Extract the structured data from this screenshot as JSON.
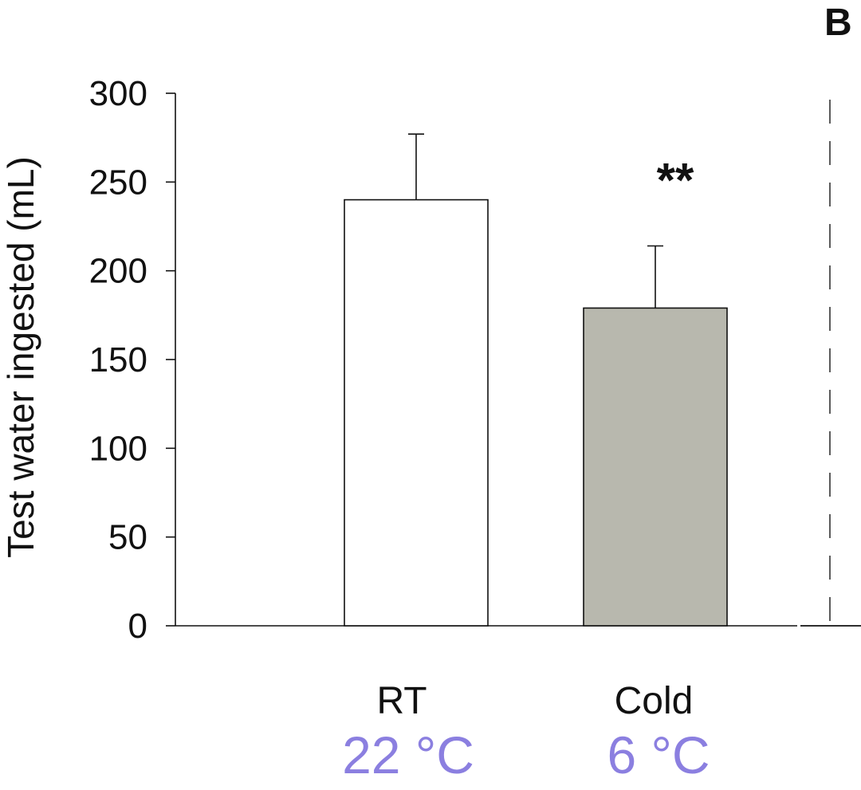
{
  "panel_letter": "B",
  "chart_data": {
    "type": "bar",
    "title": "",
    "xlabel": "",
    "ylabel": "Test water ingested (mL)",
    "ylim": [
      0,
      300
    ],
    "yticks": [
      0,
      50,
      100,
      150,
      200,
      250,
      300
    ],
    "categories": [
      "RT",
      "Cold"
    ],
    "category_temperatures": [
      "22 °C",
      "6 °C"
    ],
    "values": [
      240,
      179
    ],
    "error_upper": [
      37,
      35
    ],
    "bar_colors": [
      "#ffffff",
      "#b8b8ae"
    ],
    "annotations": [
      {
        "category": "Cold",
        "text": "**"
      }
    ],
    "temperature_color": "#8b7fe0"
  }
}
